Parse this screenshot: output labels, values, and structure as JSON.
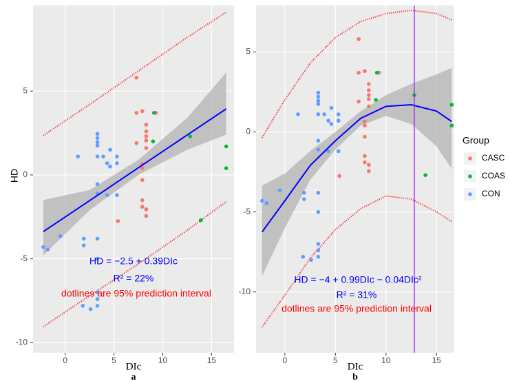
{
  "chart_data": [
    {
      "type": "scatter",
      "panel": "a",
      "x_label": "DIc",
      "y_label": "HD",
      "xlim": [
        -3.3,
        17.3
      ],
      "ylim": [
        -10.6,
        10.1
      ],
      "xticks": [
        0,
        5,
        10,
        15
      ],
      "yticks": [
        -10,
        -5,
        0,
        5
      ],
      "grid": true,
      "series": [
        {
          "name": "CASC",
          "color": "#f8766d",
          "x": [
            5.4,
            7.3,
            7.3,
            7.3,
            7.9,
            7.9,
            7.9,
            7.9,
            7.9,
            7.9,
            8.3,
            8.3,
            8.3,
            8.3,
            8.3,
            8.3,
            8.3,
            9.3
          ],
          "values": [
            -2.75,
            5.8,
            3.7,
            1.9,
            3.8,
            0.65,
            0.4,
            -0.3,
            -1.5,
            -1.9,
            3.0,
            2.6,
            2.3,
            2.05,
            1.6,
            -2.05,
            -2.45,
            3.7
          ]
        },
        {
          "name": "COAS",
          "color": "#00ba38",
          "x": [
            9.1,
            9.0,
            12.8,
            13.9,
            16.5,
            16.5
          ],
          "values": [
            3.7,
            2.0,
            2.3,
            -2.7,
            1.7,
            0.4
          ]
        },
        {
          "name": "CON",
          "color": "#619cff",
          "x": [
            -2.25,
            -1.8,
            -0.5,
            1.3,
            1.9,
            1.9,
            1.8,
            2.6,
            3.3,
            3.3,
            3.3,
            3.3,
            3.3,
            3.3,
            3.3,
            3.3,
            3.3,
            3.3,
            3.3,
            3.3,
            3.9,
            4.3,
            4.3,
            4.6,
            4.6,
            5.3,
            5.3,
            5.3
          ],
          "values": [
            -4.3,
            -4.45,
            -3.65,
            1.1,
            -3.8,
            -4.2,
            -7.8,
            -8.0,
            2.45,
            2.2,
            1.95,
            1.75,
            1.1,
            -0.55,
            -1.1,
            -3.8,
            -5.0,
            -7.0,
            -7.4,
            -7.8,
            1.1,
            0.7,
            -1.2,
            0.5,
            1.5,
            1.1,
            0.7,
            -1.2
          ]
        }
      ],
      "curve_x": [
        -2.25,
        2.5,
        7.5,
        12.5,
        16.5
      ],
      "fit": {
        "color": "#0000ff",
        "values": [
          -3.38,
          -1.53,
          0.43,
          2.38,
          3.94
        ]
      },
      "ci": {
        "color": "#b3b3b3",
        "lower": [
          -4.8,
          -2.1,
          0.0,
          1.5,
          2.4
        ],
        "upper": [
          -1.5,
          -0.9,
          0.9,
          3.4,
          6.1
        ]
      },
      "pi": {
        "color": "#ff0000",
        "lower": [
          -9.05,
          -7.2,
          -5.3,
          -3.3,
          -1.6
        ],
        "upper": [
          2.35,
          4.2,
          6.2,
          8.2,
          9.7
        ]
      },
      "annotations": [
        {
          "text": "HD = −2.5 + 0.39DIc",
          "color": "#0000ff"
        },
        {
          "text": "R² = 22%",
          "color": "#0000ff"
        },
        {
          "text": "dotlines are 95% prediction interval",
          "color": "#ff0000"
        }
      ]
    },
    {
      "type": "scatter",
      "panel": "b",
      "x_label": "DIc",
      "xlim": [
        -2.85,
        16.75
      ],
      "ylim": [
        -13.8,
        7.9
      ],
      "xticks": [
        0,
        5,
        10,
        15
      ],
      "yticks": [
        -10,
        -5,
        0,
        5
      ],
      "grid": true,
      "series": [
        {
          "name": "CASC",
          "color": "#f8766d",
          "x": [
            5.4,
            7.3,
            7.3,
            7.3,
            7.9,
            7.9,
            7.9,
            7.9,
            7.9,
            7.9,
            8.3,
            8.3,
            8.3,
            8.3,
            8.3,
            8.3,
            8.3,
            9.3
          ],
          "values": [
            -2.75,
            5.8,
            3.7,
            1.9,
            3.8,
            0.65,
            0.4,
            -0.3,
            -1.5,
            -1.9,
            3.0,
            2.6,
            2.3,
            2.05,
            1.6,
            -2.05,
            -2.45,
            3.7
          ]
        },
        {
          "name": "COAS",
          "color": "#00ba38",
          "x": [
            9.1,
            9.0,
            12.8,
            13.9,
            16.5,
            16.5
          ],
          "values": [
            3.7,
            2.0,
            2.3,
            -2.7,
            1.7,
            0.4
          ]
        },
        {
          "name": "CON",
          "color": "#619cff",
          "x": [
            -2.25,
            -1.8,
            -0.5,
            1.3,
            1.9,
            1.9,
            1.8,
            2.6,
            3.3,
            3.3,
            3.3,
            3.3,
            3.3,
            3.3,
            3.3,
            3.3,
            3.3,
            3.3,
            3.3,
            3.3,
            3.9,
            4.3,
            4.3,
            4.6,
            4.6,
            5.3,
            5.3,
            5.3
          ],
          "values": [
            -4.3,
            -4.45,
            -3.65,
            1.1,
            -3.8,
            -4.2,
            -7.8,
            -8.0,
            2.45,
            2.2,
            1.95,
            1.75,
            1.1,
            -0.55,
            -1.1,
            -3.8,
            -5.0,
            -7.0,
            -7.4,
            -7.8,
            1.1,
            0.7,
            -1.2,
            0.5,
            1.5,
            1.1,
            0.7,
            -1.2
          ]
        }
      ],
      "curve_x": [
        -2.25,
        0,
        2.5,
        5,
        7.5,
        10,
        12.5,
        15,
        16.5
      ],
      "fit": {
        "color": "#0000ff",
        "values": [
          -6.25,
          -4.3,
          -2.1,
          -0.55,
          0.85,
          1.6,
          1.7,
          1.3,
          0.65
        ]
      },
      "ci": {
        "color": "#b3b3b3",
        "lower": [
          -9.0,
          -6.0,
          -3.0,
          -1.1,
          0.4,
          1.0,
          0.5,
          -0.9,
          -2.3
        ],
        "upper": [
          -3.35,
          -2.6,
          -1.2,
          0.0,
          1.3,
          2.3,
          3.0,
          3.6,
          4.0
        ]
      },
      "pi": {
        "color": "#ff0000",
        "lower": [
          -12.2,
          -10.2,
          -7.9,
          -6.1,
          -4.8,
          -4.0,
          -4.2,
          -5.0,
          -5.6
        ],
        "upper": [
          -0.35,
          2.0,
          4.3,
          5.9,
          6.9,
          7.4,
          7.6,
          7.4,
          7.0
        ]
      },
      "vline": {
        "x": 12.8,
        "color": "#a020f0"
      },
      "legend_title": "Group",
      "annotations": [
        {
          "text": "HD = −4 + 0.99DIc − 0.04DIc²",
          "color": "#0000ff"
        },
        {
          "text": "R² = 31%",
          "color": "#0000ff"
        },
        {
          "text": "dotlines are 95% prediction interval",
          "color": "#ff0000"
        }
      ]
    }
  ]
}
